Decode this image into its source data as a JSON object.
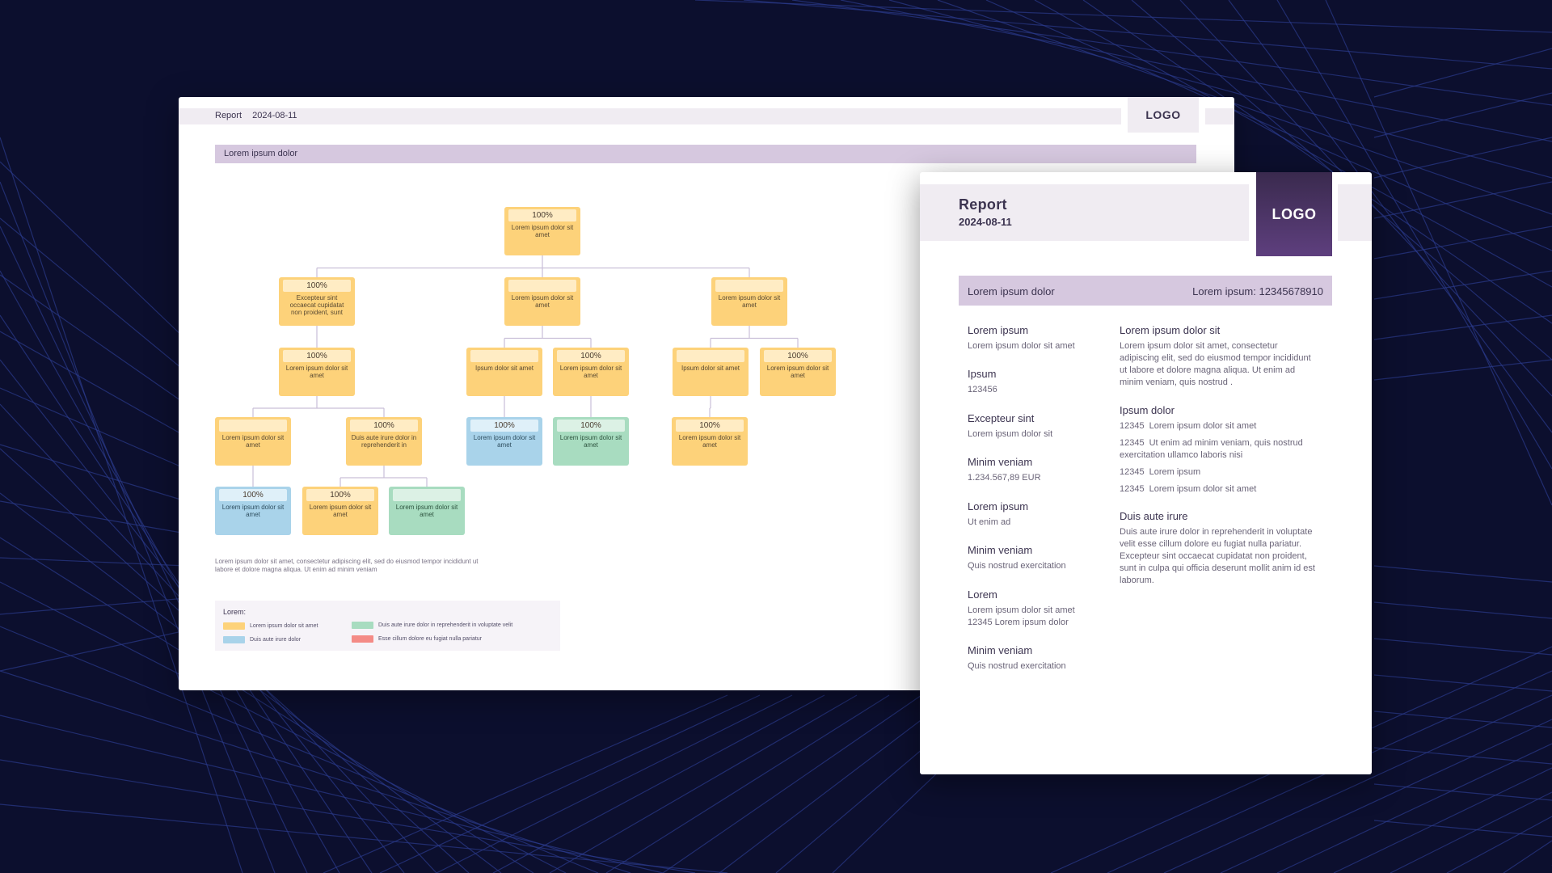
{
  "main_report": {
    "header_title": "Report",
    "header_date": "2024-08-11",
    "logo_text": "LOGO",
    "section_title": "Lorem ipsum dolor",
    "org_chart": {
      "nodes": [
        {
          "id": "n0",
          "percent": "100%",
          "label": "Lorem ipsum dolor sit amet",
          "color": "yellow"
        },
        {
          "id": "n1",
          "percent": "100%",
          "label": "Excepteur sint occaecat cupidatat non proident, sunt",
          "color": "yellow"
        },
        {
          "id": "n2",
          "percent": "",
          "label": "Lorem ipsum dolor sit amet",
          "color": "yellow"
        },
        {
          "id": "n3",
          "percent": "",
          "label": "Lorem ipsum dolor sit amet",
          "color": "yellow"
        },
        {
          "id": "n4",
          "percent": "100%",
          "label": "Lorem ipsum dolor sit amet",
          "color": "yellow"
        },
        {
          "id": "n5",
          "percent": "",
          "label": "Ipsum dolor sit amet",
          "color": "yellow"
        },
        {
          "id": "n6",
          "percent": "100%",
          "label": "Lorem ipsum dolor sit amet",
          "color": "yellow"
        },
        {
          "id": "n7",
          "percent": "",
          "label": "Ipsum dolor sit amet",
          "color": "yellow"
        },
        {
          "id": "n8",
          "percent": "100%",
          "label": "Lorem ipsum dolor sit amet",
          "color": "yellow"
        },
        {
          "id": "n9",
          "percent": "",
          "label": "Lorem ipsum dolor sit amet",
          "color": "yellow"
        },
        {
          "id": "n10",
          "percent": "100%",
          "label": "Duis aute irure dolor in reprehenderit in",
          "color": "yellow"
        },
        {
          "id": "n11",
          "percent": "100%",
          "label": "Lorem ipsum dolor sit amet",
          "color": "blue"
        },
        {
          "id": "n12",
          "percent": "100%",
          "label": "Lorem ipsum dolor sit amet",
          "color": "green"
        },
        {
          "id": "n13",
          "percent": "100%",
          "label": "Lorem ipsum dolor sit amet",
          "color": "yellow"
        },
        {
          "id": "n14",
          "percent": "100%",
          "label": "Lorem ipsum dolor sit amet",
          "color": "blue"
        },
        {
          "id": "n15",
          "percent": "100%",
          "label": "Lorem ipsum dolor sit amet",
          "color": "yellow"
        },
        {
          "id": "n16",
          "percent": "",
          "label": "Lorem ipsum dolor sit amet",
          "color": "green"
        }
      ],
      "edges": [
        [
          "n0",
          "n1"
        ],
        [
          "n0",
          "n2"
        ],
        [
          "n0",
          "n3"
        ],
        [
          "n1",
          "n4"
        ],
        [
          "n2",
          "n5"
        ],
        [
          "n2",
          "n6"
        ],
        [
          "n3",
          "n7"
        ],
        [
          "n3",
          "n8"
        ],
        [
          "n4",
          "n9"
        ],
        [
          "n4",
          "n10"
        ],
        [
          "n5",
          "n11"
        ],
        [
          "n6",
          "n12"
        ],
        [
          "n7",
          "n13"
        ],
        [
          "n9",
          "n14"
        ],
        [
          "n10",
          "n15"
        ],
        [
          "n10",
          "n16"
        ]
      ]
    },
    "footnote": "Lorem ipsum dolor sit amet, consectetur adipiscing elit, sed do eiusmod tempor incididunt ut labore et dolore magna aliqua. Ut enim ad minim veniam",
    "legend": {
      "title": "Lorem:",
      "items": [
        {
          "color": "#fdd27a",
          "label": "Lorem ipsum dolor sit amet"
        },
        {
          "color": "#a9d3ea",
          "label": "Duis aute irure dolor"
        },
        {
          "color": "#a8dcc0",
          "label": "Duis aute irure dolor in reprehenderit in voluptate velit"
        },
        {
          "color": "#f48b86",
          "label": "Esse cillum dolore eu fugiat nulla pariatur"
        }
      ]
    }
  },
  "detail_card": {
    "title": "Report",
    "date": "2024-08-11",
    "logo_text": "LOGO",
    "bar_left": "Lorem ipsum dolor",
    "bar_right": "Lorem ipsum: 12345678910",
    "left_fields": [
      {
        "label": "Lorem ipsum",
        "value": "Lorem ipsum dolor sit amet"
      },
      {
        "label": "Ipsum",
        "value": "123456"
      },
      {
        "label": "Excepteur sint",
        "value": "Lorem ipsum dolor sit"
      },
      {
        "label": "Minim veniam",
        "value": "1.234.567,89 EUR"
      },
      {
        "label": "Lorem ipsum",
        "value": "Ut enim ad"
      },
      {
        "label": "Minim veniam",
        "value": "Quis nostrud exercitation"
      },
      {
        "label": "Lorem",
        "value": "Lorem ipsum dolor sit amet\n12345 Lorem ipsum dolor"
      },
      {
        "label": "Minim veniam",
        "value": "Quis nostrud exercitation"
      }
    ],
    "right_section1": {
      "label": "Lorem ipsum dolor sit",
      "text": "Lorem ipsum dolor sit amet, consectetur adipiscing elit, sed do eiusmod tempor incididunt ut labore et dolore magna aliqua. Ut enim ad minim veniam, quis nostrud ."
    },
    "right_section2": {
      "label": "Ipsum dolor",
      "items": [
        {
          "code": "12345",
          "text": "Lorem ipsum dolor sit amet"
        },
        {
          "code": "12345",
          "text": "Ut enim ad minim veniam, quis nostrud exercitation ullamco laboris nisi"
        },
        {
          "code": "12345",
          "text": "Lorem ipsum"
        },
        {
          "code": "12345",
          "text": "Lorem ipsum dolor sit amet"
        }
      ]
    },
    "right_section3": {
      "label": "Duis aute irure",
      "text": "Duis aute irure dolor in reprehenderit in voluptate velit esse cillum dolore eu fugiat nulla pariatur. Excepteur sint occaecat cupidatat non proident, sunt in culpa qui officia deserunt mollit anim id est laborum."
    }
  }
}
